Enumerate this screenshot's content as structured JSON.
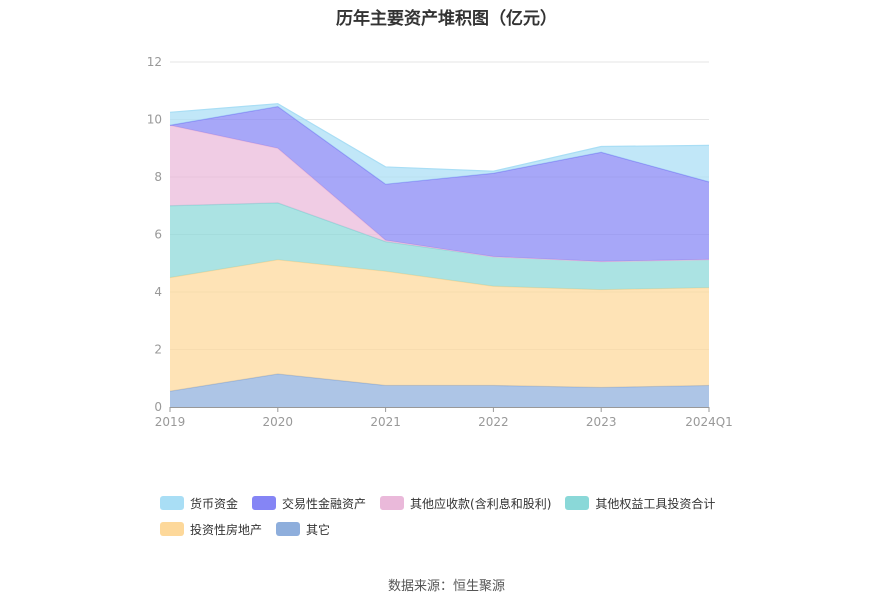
{
  "chart_data": {
    "type": "area",
    "stacked": true,
    "title": "历年主要资产堆积图（亿元）",
    "categories": [
      "2019",
      "2020",
      "2021",
      "2022",
      "2023",
      "2024Q1"
    ],
    "ylim": [
      0,
      12
    ],
    "yticks": [
      0,
      2,
      4,
      6,
      8,
      10,
      12
    ],
    "grid": true,
    "legend_position": "bottom",
    "series": [
      {
        "name": "其它",
        "color": "#8eaedc",
        "values": [
          0.55,
          1.15,
          0.75,
          0.75,
          0.68,
          0.75
        ]
      },
      {
        "name": "投资性房地产",
        "color": "#fdd89a",
        "values": [
          3.95,
          3.97,
          3.97,
          3.45,
          3.4,
          3.4
        ]
      },
      {
        "name": "其他权益工具投资合计",
        "color": "#8ad8d8",
        "values": [
          2.5,
          1.98,
          1.03,
          1.03,
          0.98,
          0.98
        ]
      },
      {
        "name": "其他应收款(含利息和股利)",
        "color": "#eab9da",
        "values": [
          2.8,
          1.9,
          0.05,
          0.0,
          0.0,
          0.0
        ]
      },
      {
        "name": "交易性金融资产",
        "color": "#8585f5",
        "values": [
          0.0,
          1.45,
          1.95,
          2.9,
          3.8,
          2.7
        ]
      },
      {
        "name": "货币资金",
        "color": "#a9def5",
        "values": [
          0.45,
          0.1,
          0.6,
          0.07,
          0.2,
          1.27
        ]
      }
    ],
    "legend_order": [
      "货币资金",
      "交易性金融资产",
      "其他应收款(含利息和股利)",
      "其他权益工具投资合计",
      "投资性房地产",
      "其它"
    ]
  },
  "source_text": "数据来源：恒生聚源"
}
